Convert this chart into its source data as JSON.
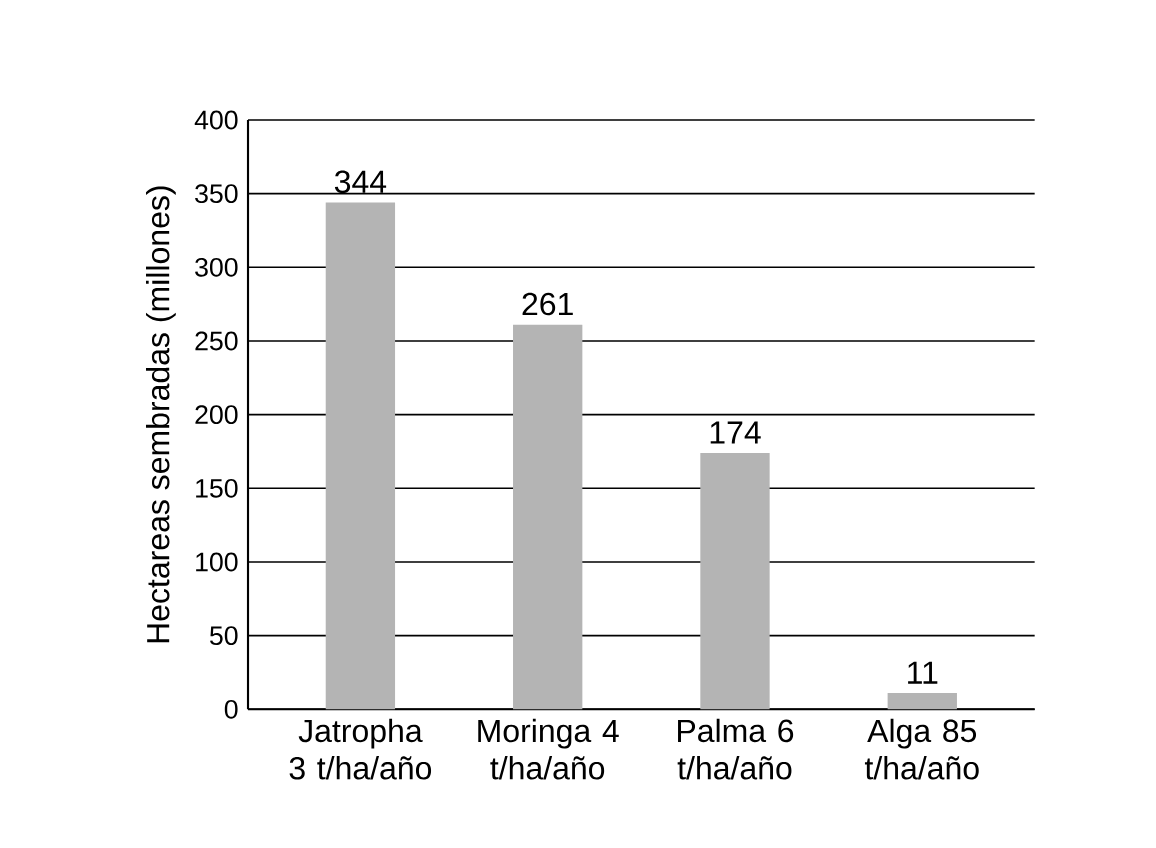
{
  "chart_data": {
    "type": "bar",
    "ylabel": "Hectareas sembradas (millones)",
    "categories": [
      "Jatropha 3 t/ha/año",
      "Moringa 4 t/ha/año",
      "Palma 6 t/ha/año",
      "Alga 85 t/ha/año"
    ],
    "values": [
      344,
      261,
      174,
      11
    ],
    "color": "#b4b4b4",
    "ylim": [
      0,
      400
    ],
    "yticks": [
      0,
      50,
      100,
      150,
      200,
      250,
      300,
      350,
      400
    ],
    "grid": "y",
    "data_labels": true
  }
}
